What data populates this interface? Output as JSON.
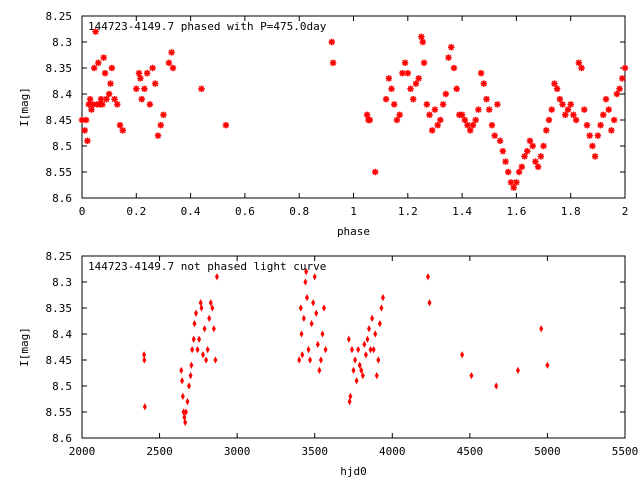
{
  "chart_data": [
    {
      "type": "scatter",
      "title": "144723-4149.7 phased with P=475.0day",
      "xlabel": "phase",
      "ylabel": "I[mag]",
      "xlim": [
        0,
        2
      ],
      "ylim": [
        8.25,
        8.6
      ],
      "y_inverted": true,
      "grid": false,
      "x_ticks": [
        "0",
        "0.2",
        "0.4",
        "0.6",
        "0.8",
        "1",
        "1.2",
        "1.4",
        "1.6",
        "1.8",
        "2"
      ],
      "x_tick_values": [
        0,
        0.2,
        0.4,
        0.6,
        0.8,
        1,
        1.2,
        1.4,
        1.6,
        1.8,
        2
      ],
      "y_ticks": [
        "8.25",
        "8.3",
        "8.35",
        "8.4",
        "8.45",
        "8.5",
        "8.55",
        "8.6"
      ],
      "y_tick_values": [
        8.25,
        8.3,
        8.35,
        8.4,
        8.45,
        8.5,
        8.55,
        8.6
      ],
      "color": "#ff0000",
      "points": [
        [
          0.0,
          8.45
        ],
        [
          0.01,
          8.47
        ],
        [
          0.015,
          8.45
        ],
        [
          0.02,
          8.49
        ],
        [
          0.025,
          8.42
        ],
        [
          0.03,
          8.41
        ],
        [
          0.035,
          8.43
        ],
        [
          0.04,
          8.42
        ],
        [
          0.045,
          8.35
        ],
        [
          0.05,
          8.28
        ],
        [
          0.055,
          8.42
        ],
        [
          0.06,
          8.34
        ],
        [
          0.065,
          8.42
        ],
        [
          0.07,
          8.41
        ],
        [
          0.075,
          8.42
        ],
        [
          0.08,
          8.33
        ],
        [
          0.085,
          8.36
        ],
        [
          0.09,
          8.41
        ],
        [
          0.1,
          8.4
        ],
        [
          0.105,
          8.38
        ],
        [
          0.11,
          8.35
        ],
        [
          0.12,
          8.41
        ],
        [
          0.13,
          8.42
        ],
        [
          0.14,
          8.46
        ],
        [
          0.15,
          8.47
        ],
        [
          0.2,
          8.39
        ],
        [
          0.21,
          8.36
        ],
        [
          0.215,
          8.37
        ],
        [
          0.22,
          8.41
        ],
        [
          0.23,
          8.39
        ],
        [
          0.24,
          8.36
        ],
        [
          0.25,
          8.42
        ],
        [
          0.26,
          8.35
        ],
        [
          0.27,
          8.38
        ],
        [
          0.28,
          8.48
        ],
        [
          0.29,
          8.46
        ],
        [
          0.3,
          8.44
        ],
        [
          0.32,
          8.34
        ],
        [
          0.33,
          8.32
        ],
        [
          0.335,
          8.35
        ],
        [
          0.44,
          8.39
        ],
        [
          0.53,
          8.46
        ],
        [
          0.92,
          8.3
        ],
        [
          0.925,
          8.34
        ],
        [
          1.05,
          8.44
        ],
        [
          1.055,
          8.45
        ],
        [
          1.06,
          8.45
        ],
        [
          1.08,
          8.55
        ],
        [
          1.12,
          8.41
        ],
        [
          1.13,
          8.37
        ],
        [
          1.14,
          8.39
        ],
        [
          1.15,
          8.42
        ],
        [
          1.16,
          8.45
        ],
        [
          1.17,
          8.44
        ],
        [
          1.18,
          8.36
        ],
        [
          1.19,
          8.34
        ],
        [
          1.2,
          8.36
        ],
        [
          1.21,
          8.39
        ],
        [
          1.22,
          8.41
        ],
        [
          1.23,
          8.38
        ],
        [
          1.24,
          8.37
        ],
        [
          1.25,
          8.29
        ],
        [
          1.255,
          8.3
        ],
        [
          1.26,
          8.34
        ],
        [
          1.27,
          8.42
        ],
        [
          1.28,
          8.44
        ],
        [
          1.29,
          8.47
        ],
        [
          1.3,
          8.43
        ],
        [
          1.31,
          8.46
        ],
        [
          1.32,
          8.45
        ],
        [
          1.33,
          8.42
        ],
        [
          1.34,
          8.4
        ],
        [
          1.35,
          8.33
        ],
        [
          1.36,
          8.31
        ],
        [
          1.37,
          8.35
        ],
        [
          1.38,
          8.39
        ],
        [
          1.39,
          8.44
        ],
        [
          1.4,
          8.44
        ],
        [
          1.41,
          8.45
        ],
        [
          1.42,
          8.46
        ],
        [
          1.43,
          8.47
        ],
        [
          1.44,
          8.46
        ],
        [
          1.45,
          8.45
        ],
        [
          1.46,
          8.43
        ],
        [
          1.47,
          8.36
        ],
        [
          1.48,
          8.38
        ],
        [
          1.49,
          8.41
        ],
        [
          1.5,
          8.43
        ],
        [
          1.51,
          8.46
        ],
        [
          1.52,
          8.48
        ],
        [
          1.53,
          8.42
        ],
        [
          1.54,
          8.49
        ],
        [
          1.55,
          8.51
        ],
        [
          1.56,
          8.53
        ],
        [
          1.57,
          8.55
        ],
        [
          1.58,
          8.57
        ],
        [
          1.59,
          8.58
        ],
        [
          1.6,
          8.57
        ],
        [
          1.61,
          8.55
        ],
        [
          1.62,
          8.54
        ],
        [
          1.63,
          8.52
        ],
        [
          1.64,
          8.51
        ],
        [
          1.65,
          8.49
        ],
        [
          1.66,
          8.5
        ],
        [
          1.67,
          8.53
        ],
        [
          1.68,
          8.54
        ],
        [
          1.69,
          8.52
        ],
        [
          1.7,
          8.5
        ],
        [
          1.71,
          8.47
        ],
        [
          1.72,
          8.45
        ],
        [
          1.73,
          8.43
        ],
        [
          1.74,
          8.38
        ],
        [
          1.75,
          8.39
        ],
        [
          1.76,
          8.41
        ],
        [
          1.77,
          8.42
        ],
        [
          1.78,
          8.44
        ],
        [
          1.79,
          8.43
        ],
        [
          1.8,
          8.42
        ],
        [
          1.81,
          8.44
        ],
        [
          1.82,
          8.45
        ],
        [
          1.83,
          8.34
        ],
        [
          1.84,
          8.35
        ],
        [
          1.85,
          8.43
        ],
        [
          1.86,
          8.46
        ],
        [
          1.87,
          8.48
        ],
        [
          1.88,
          8.5
        ],
        [
          1.89,
          8.52
        ],
        [
          1.9,
          8.48
        ],
        [
          1.91,
          8.46
        ],
        [
          1.92,
          8.44
        ],
        [
          1.93,
          8.41
        ],
        [
          1.94,
          8.43
        ],
        [
          1.95,
          8.47
        ],
        [
          1.96,
          8.45
        ],
        [
          1.97,
          8.4
        ],
        [
          1.98,
          8.39
        ],
        [
          1.99,
          8.37
        ],
        [
          2.0,
          8.35
        ]
      ]
    },
    {
      "type": "scatter",
      "title": "144723-4149.7 not phased light curve",
      "xlabel": "hjd0",
      "ylabel": "I[mag]",
      "xlim": [
        2000,
        5500
      ],
      "ylim": [
        8.25,
        8.6
      ],
      "y_inverted": true,
      "grid": false,
      "x_ticks": [
        "2000",
        "2500",
        "3000",
        "3500",
        "4000",
        "4500",
        "5000",
        "5500"
      ],
      "x_tick_values": [
        2000,
        2500,
        3000,
        3500,
        4000,
        4500,
        5000,
        5500
      ],
      "y_ticks": [
        "8.25",
        "8.3",
        "8.35",
        "8.4",
        "8.45",
        "8.5",
        "8.55",
        "8.6"
      ],
      "y_tick_values": [
        8.25,
        8.3,
        8.35,
        8.4,
        8.45,
        8.5,
        8.55,
        8.6
      ],
      "color": "#ff0000",
      "points": [
        [
          2400,
          8.44
        ],
        [
          2402,
          8.45
        ],
        [
          2405,
          8.54
        ],
        [
          2640,
          8.47
        ],
        [
          2645,
          8.49
        ],
        [
          2650,
          8.52
        ],
        [
          2655,
          8.55
        ],
        [
          2660,
          8.56
        ],
        [
          2665,
          8.57
        ],
        [
          2670,
          8.55
        ],
        [
          2680,
          8.53
        ],
        [
          2690,
          8.5
        ],
        [
          2700,
          8.48
        ],
        [
          2705,
          8.46
        ],
        [
          2710,
          8.43
        ],
        [
          2720,
          8.41
        ],
        [
          2725,
          8.38
        ],
        [
          2735,
          8.36
        ],
        [
          2745,
          8.43
        ],
        [
          2755,
          8.41
        ],
        [
          2765,
          8.34
        ],
        [
          2770,
          8.35
        ],
        [
          2780,
          8.44
        ],
        [
          2790,
          8.39
        ],
        [
          2800,
          8.45
        ],
        [
          2810,
          8.43
        ],
        [
          2820,
          8.37
        ],
        [
          2830,
          8.34
        ],
        [
          2840,
          8.35
        ],
        [
          2850,
          8.39
        ],
        [
          2860,
          8.45
        ],
        [
          2870,
          8.29
        ],
        [
          3400,
          8.45
        ],
        [
          3410,
          8.35
        ],
        [
          3415,
          8.4
        ],
        [
          3420,
          8.44
        ],
        [
          3430,
          8.37
        ],
        [
          3440,
          8.3
        ],
        [
          3445,
          8.28
        ],
        [
          3450,
          8.33
        ],
        [
          3460,
          8.43
        ],
        [
          3470,
          8.45
        ],
        [
          3480,
          8.38
        ],
        [
          3490,
          8.34
        ],
        [
          3500,
          8.29
        ],
        [
          3510,
          8.36
        ],
        [
          3520,
          8.42
        ],
        [
          3530,
          8.47
        ],
        [
          3540,
          8.45
        ],
        [
          3550,
          8.4
        ],
        [
          3560,
          8.35
        ],
        [
          3570,
          8.43
        ],
        [
          3720,
          8.41
        ],
        [
          3725,
          8.53
        ],
        [
          3730,
          8.52
        ],
        [
          3740,
          8.43
        ],
        [
          3750,
          8.47
        ],
        [
          3760,
          8.45
        ],
        [
          3770,
          8.49
        ],
        [
          3780,
          8.43
        ],
        [
          3790,
          8.46
        ],
        [
          3800,
          8.47
        ],
        [
          3810,
          8.48
        ],
        [
          3820,
          8.42
        ],
        [
          3830,
          8.44
        ],
        [
          3840,
          8.41
        ],
        [
          3850,
          8.39
        ],
        [
          3860,
          8.43
        ],
        [
          3870,
          8.37
        ],
        [
          3880,
          8.43
        ],
        [
          3890,
          8.4
        ],
        [
          3900,
          8.48
        ],
        [
          3910,
          8.45
        ],
        [
          3920,
          8.38
        ],
        [
          3930,
          8.35
        ],
        [
          3940,
          8.33
        ],
        [
          4230,
          8.29
        ],
        [
          4240,
          8.34
        ],
        [
          4450,
          8.44
        ],
        [
          4510,
          8.48
        ],
        [
          4670,
          8.5
        ],
        [
          4810,
          8.47
        ],
        [
          4960,
          8.39
        ],
        [
          5000,
          8.46
        ]
      ]
    }
  ]
}
